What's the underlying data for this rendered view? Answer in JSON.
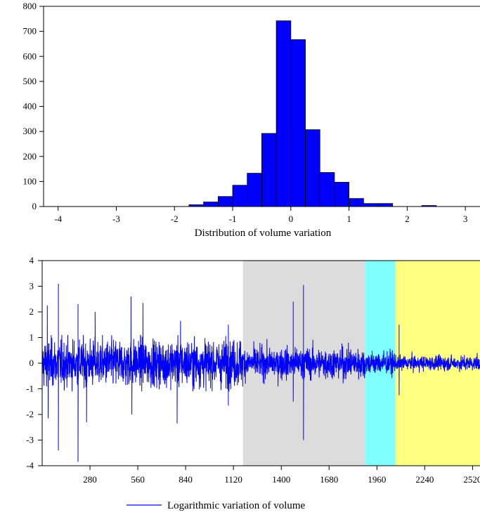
{
  "chart_data": [
    {
      "type": "bar",
      "title": "",
      "xlabel": "Distribution of volume variation",
      "ylabel": "",
      "bin_width": 0.25,
      "bins": [
        {
          "x0": -1.75,
          "count": 7
        },
        {
          "x0": -1.5,
          "count": 18
        },
        {
          "x0": -1.25,
          "count": 40
        },
        {
          "x0": -1.0,
          "count": 85
        },
        {
          "x0": -0.75,
          "count": 133
        },
        {
          "x0": -0.5,
          "count": 292
        },
        {
          "x0": -0.25,
          "count": 742
        },
        {
          "x0": 0.0,
          "count": 667
        },
        {
          "x0": 0.25,
          "count": 307
        },
        {
          "x0": 0.5,
          "count": 136
        },
        {
          "x0": 0.75,
          "count": 97
        },
        {
          "x0": 1.0,
          "count": 32
        },
        {
          "x0": 1.25,
          "count": 12
        },
        {
          "x0": 1.5,
          "count": 12
        },
        {
          "x0": 2.25,
          "count": 4
        }
      ],
      "xlim": [
        -4.25,
        3.3
      ],
      "ylim": [
        0,
        800
      ],
      "xticks": [
        -4,
        -3,
        -2,
        -1,
        0,
        1,
        2,
        3
      ],
      "yticks": [
        0,
        100,
        200,
        300,
        400,
        500,
        600,
        700,
        800
      ],
      "bar_color": "#0000FF",
      "grid": false
    },
    {
      "type": "line",
      "title": "",
      "xlabel": "",
      "ylabel": "",
      "xlim": [
        0,
        2580
      ],
      "ylim": [
        -4,
        4
      ],
      "xticks": [
        280,
        560,
        840,
        1120,
        1400,
        1680,
        1960,
        2240,
        2520
      ],
      "yticks": [
        -4,
        -3,
        -2,
        -1,
        0,
        1,
        2,
        3,
        4
      ],
      "shaded_regions": [
        {
          "from": 1176,
          "to": 1893,
          "color": "#DCDCDC"
        },
        {
          "from": 1893,
          "to": 2068,
          "color": "#80FFFF"
        },
        {
          "from": 2068,
          "to": 2580,
          "color": "#FFFF80"
        }
      ],
      "series": [
        {
          "name": "Logarithmic variation of volume",
          "color": "#0000FF",
          "n_points": 2580,
          "noise_sigma_by_segment": [
            {
              "from": 0,
              "to": 1176,
              "sigma": 0.45
            },
            {
              "from": 1176,
              "to": 1893,
              "sigma": 0.3
            },
            {
              "from": 1893,
              "to": 2068,
              "sigma": 0.22
            },
            {
              "from": 2068,
              "to": 2580,
              "sigma": 0.14
            }
          ],
          "spikes": [
            {
              "x": 30,
              "y": 2.25
            },
            {
              "x": 35,
              "y": -2.15
            },
            {
              "x": 95,
              "y": 3.1
            },
            {
              "x": 95,
              "y": -3.4
            },
            {
              "x": 210,
              "y": 2.3
            },
            {
              "x": 210,
              "y": -3.85
            },
            {
              "x": 260,
              "y": -2.3
            },
            {
              "x": 310,
              "y": 2.0
            },
            {
              "x": 520,
              "y": 2.6
            },
            {
              "x": 525,
              "y": -2.0
            },
            {
              "x": 590,
              "y": 2.35
            },
            {
              "x": 790,
              "y": -2.35
            },
            {
              "x": 810,
              "y": 1.65
            },
            {
              "x": 1090,
              "y": -1.65
            },
            {
              "x": 1090,
              "y": 1.5
            },
            {
              "x": 1470,
              "y": 2.4
            },
            {
              "x": 1470,
              "y": -1.5
            },
            {
              "x": 1530,
              "y": 3.05
            },
            {
              "x": 1530,
              "y": -3.0
            },
            {
              "x": 2090,
              "y": 1.5
            },
            {
              "x": 2090,
              "y": -1.25
            }
          ]
        }
      ]
    }
  ]
}
